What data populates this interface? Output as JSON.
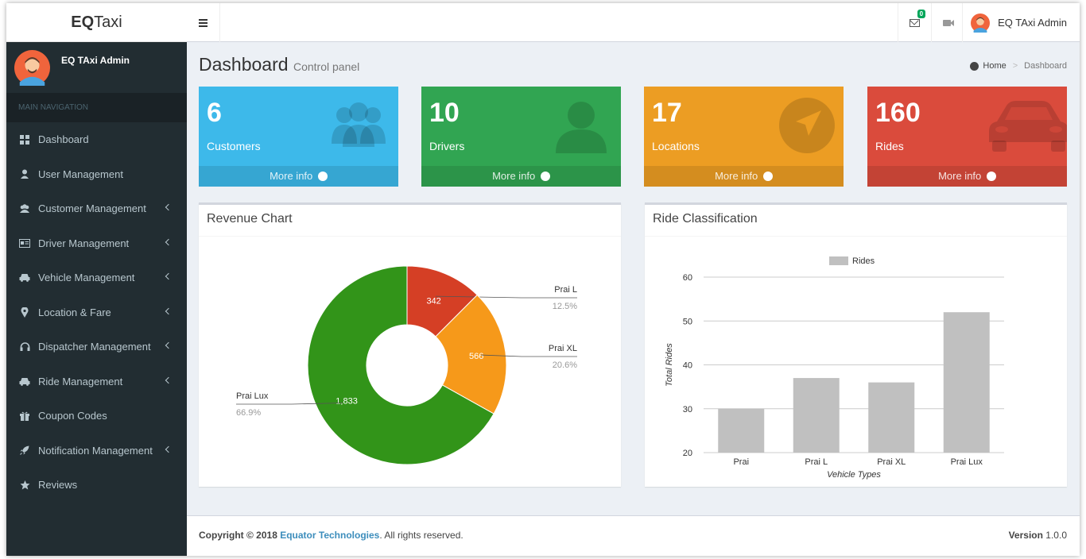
{
  "brand": {
    "bold": "EQ",
    "rest": "Taxi"
  },
  "topbar": {
    "mail_count": "0",
    "user_name": "EQ TAxi Admin"
  },
  "sidebar": {
    "user_name": "EQ TAxi Admin",
    "nav_header": "MAIN NAVIGATION",
    "items": [
      {
        "label": "Dashboard",
        "icon": "dashboard-icon"
      },
      {
        "label": "User Management",
        "icon": "user-icon"
      },
      {
        "label": "Customer Management",
        "icon": "users-icon"
      },
      {
        "label": "Driver Management",
        "icon": "id-card-icon"
      },
      {
        "label": "Vehicle Management",
        "icon": "car-icon"
      },
      {
        "label": "Location & Fare",
        "icon": "map-marker-icon"
      },
      {
        "label": "Dispatcher Management",
        "icon": "headset-icon"
      },
      {
        "label": "Ride Management",
        "icon": "car-icon"
      },
      {
        "label": "Coupon Codes",
        "icon": "gift-icon"
      },
      {
        "label": "Notification Management",
        "icon": "rocket-icon"
      },
      {
        "label": "Reviews",
        "icon": "star-icon"
      }
    ]
  },
  "page": {
    "title": "Dashboard",
    "subtitle": "Control panel"
  },
  "breadcrumb": {
    "home": "Home",
    "current": "Dashboard"
  },
  "stats": [
    {
      "value": "6",
      "label": "Customers",
      "more": "More info",
      "color": "#3db9ea"
    },
    {
      "value": "10",
      "label": "Drivers",
      "more": "More info",
      "color": "#31a552"
    },
    {
      "value": "17",
      "label": "Locations",
      "more": "More info",
      "color": "#ec9d23"
    },
    {
      "value": "160",
      "label": "Rides",
      "more": "More info",
      "color": "#da4b3c"
    }
  ],
  "revenue": {
    "title": "Revenue Chart"
  },
  "rides": {
    "title": "Ride Classification"
  },
  "chart_data": [
    {
      "type": "pie",
      "title": "Revenue Chart",
      "categories": [
        "Prai L",
        "Prai XL",
        "Prai Lux"
      ],
      "values": [
        342,
        566,
        1833
      ],
      "value_labels": [
        "342",
        "566",
        "1,833"
      ],
      "percent_labels": [
        "12.5%",
        "20.6%",
        "66.9%"
      ],
      "colors": [
        "#d53f25",
        "#f6991a",
        "#329419"
      ]
    },
    {
      "type": "bar",
      "title": "Ride Classification",
      "categories": [
        "Prai",
        "Prai L",
        "Prai XL",
        "Prai Lux"
      ],
      "series": [
        {
          "name": "Rides",
          "values": [
            30,
            37,
            36,
            52
          ]
        }
      ],
      "xlabel": "Vehicle Types",
      "ylabel": "Total Rides",
      "ylim": [
        20,
        60
      ],
      "yticks": [
        "20",
        "30",
        "40",
        "50",
        "60"
      ],
      "grid": true,
      "legend": "top",
      "color": "#c0c0c0"
    }
  ],
  "footer": {
    "copyright": "Copyright © 2018",
    "company": "Equator Technologies",
    "rights": ". All rights reserved.",
    "version_label": "Version",
    "version": "1.0.0"
  }
}
